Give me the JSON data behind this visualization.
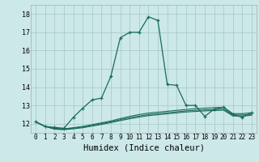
{
  "background_color": "#cce8e8",
  "grid_color": "#aacccc",
  "line_color": "#1a6b5a",
  "xlabel": "Humidex (Indice chaleur)",
  "xlabel_fontsize": 7.5,
  "ylim": [
    11.5,
    18.5
  ],
  "xlim": [
    -0.5,
    23.5
  ],
  "yticks": [
    12,
    13,
    14,
    15,
    16,
    17,
    18
  ],
  "xticks": [
    0,
    1,
    2,
    3,
    4,
    5,
    6,
    7,
    8,
    9,
    10,
    11,
    12,
    13,
    14,
    15,
    16,
    17,
    18,
    19,
    20,
    21,
    22,
    23
  ],
  "main_x": [
    0,
    1,
    2,
    3,
    4,
    5,
    6,
    7,
    8,
    9,
    10,
    11,
    12,
    13,
    14,
    15,
    16,
    17,
    18,
    19,
    20,
    21,
    22,
    23
  ],
  "main_y": [
    12.1,
    11.85,
    11.8,
    11.75,
    12.35,
    12.85,
    13.3,
    13.4,
    14.6,
    16.7,
    17.0,
    17.0,
    17.85,
    17.65,
    14.15,
    14.1,
    13.0,
    13.0,
    12.4,
    12.8,
    12.9,
    12.5,
    12.35,
    12.6
  ],
  "flat1_x": [
    0,
    1,
    2,
    3,
    4,
    5,
    6,
    7,
    8,
    9,
    10,
    11,
    12,
    13,
    14,
    15,
    16,
    17,
    18,
    19,
    20,
    21,
    22,
    23
  ],
  "flat1_y": [
    12.1,
    11.85,
    11.75,
    11.72,
    11.78,
    11.85,
    11.95,
    12.05,
    12.15,
    12.28,
    12.4,
    12.5,
    12.58,
    12.63,
    12.68,
    12.73,
    12.78,
    12.82,
    12.85,
    12.88,
    12.9,
    12.55,
    12.55,
    12.6
  ],
  "flat2_x": [
    0,
    1,
    2,
    3,
    4,
    5,
    6,
    7,
    8,
    9,
    10,
    11,
    12,
    13,
    14,
    15,
    16,
    17,
    18,
    19,
    20,
    21,
    22,
    23
  ],
  "flat2_y": [
    12.1,
    11.85,
    11.73,
    11.7,
    11.75,
    11.82,
    11.9,
    12.0,
    12.1,
    12.22,
    12.33,
    12.42,
    12.5,
    12.55,
    12.6,
    12.65,
    12.7,
    12.73,
    12.76,
    12.78,
    12.8,
    12.48,
    12.48,
    12.52
  ],
  "flat3_x": [
    0,
    1,
    2,
    3,
    4,
    5,
    6,
    7,
    8,
    9,
    10,
    11,
    12,
    13,
    14,
    15,
    16,
    17,
    18,
    19,
    20,
    21,
    22,
    23
  ],
  "flat3_y": [
    12.1,
    11.85,
    11.7,
    11.67,
    11.72,
    11.78,
    11.87,
    11.96,
    12.06,
    12.17,
    12.27,
    12.36,
    12.44,
    12.49,
    12.54,
    12.59,
    12.64,
    12.67,
    12.7,
    12.72,
    12.74,
    12.42,
    12.42,
    12.46
  ]
}
